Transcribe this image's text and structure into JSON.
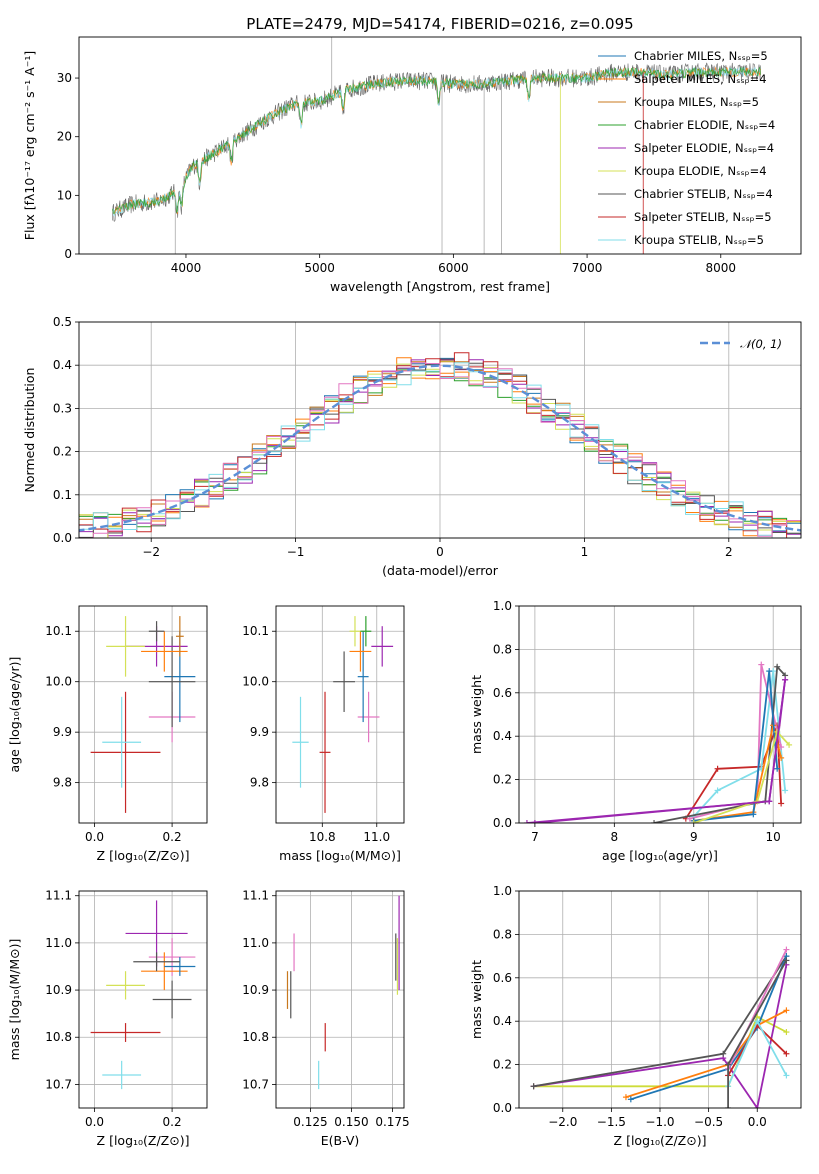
{
  "figure": {
    "title": "PLATE=2479, MJD=54174, FIBERID=0216, z=0.095"
  },
  "colors": {
    "Chabrier MILES": "#1f77b4",
    "Salpeter MILES": "#ff7f0e",
    "Kroupa MILES": "#c8781e",
    "Chabrier ELODIE": "#2ca02c",
    "Salpeter ELODIE": "#9c27b0",
    "Kroupa ELODIE": "#d4e157",
    "Chabrier STELIB": "#555555",
    "Salpeter STELIB": "#c62828",
    "Kroupa STELIB": "#80deea",
    "extra_pink": "#e377c2",
    "extra_lime": "#cddc39",
    "gaussian": "#5b8fd6"
  },
  "chart_data": [
    {
      "id": "spectrum",
      "type": "line",
      "xlabel": "wavelength [Angstrom, rest frame]",
      "ylabel": "Flux [fλ10⁻¹⁷ erg cm⁻² s⁻¹ A⁻¹]",
      "xlim": [
        3200,
        8600
      ],
      "ylim": [
        0,
        37
      ],
      "xticks": [
        "4000",
        "5000",
        "6000",
        "7000",
        "8000"
      ],
      "yticks": [
        "0",
        "10",
        "20",
        "30"
      ],
      "grid": false,
      "legend_placement": "right",
      "legend": [
        "Chabrier MILES, N_SSP=5",
        "Salpeter MILES, N_SSP=4",
        "Kroupa MILES, N_SSP=5",
        "Chabrier ELODIE, N_SSP=4",
        "Salpeter ELODIE, N_SSP=4",
        "Kroupa ELODIE, N_SSP=4",
        "Chabrier STELIB, N_SSP=4",
        "Salpeter STELIB, N_SSP=5",
        "Kroupa STELIB, N_SSP=5"
      ],
      "continuum": [
        [
          3450,
          7
        ],
        [
          3600,
          8.5
        ],
        [
          3800,
          9
        ],
        [
          3950,
          11
        ],
        [
          4050,
          15
        ],
        [
          4200,
          17
        ],
        [
          4400,
          20
        ],
        [
          4600,
          23
        ],
        [
          4800,
          25.5
        ],
        [
          5000,
          26
        ],
        [
          5200,
          28
        ],
        [
          5400,
          29
        ],
        [
          5600,
          29.5
        ],
        [
          5800,
          29.5
        ],
        [
          6000,
          29
        ],
        [
          6200,
          29
        ],
        [
          6400,
          29.5
        ],
        [
          6600,
          30
        ],
        [
          6800,
          30
        ],
        [
          7000,
          30
        ],
        [
          7200,
          31
        ],
        [
          7400,
          31
        ],
        [
          7600,
          30.5
        ],
        [
          7800,
          31
        ],
        [
          8000,
          31
        ],
        [
          8200,
          31
        ],
        [
          8300,
          31
        ]
      ]
    },
    {
      "id": "residuals",
      "type": "bar",
      "xlabel": "(data-model)/error",
      "ylabel": "Normed distribution",
      "xlim": [
        -2.5,
        2.5
      ],
      "ylim": [
        0,
        0.5
      ],
      "xticks": [
        "−2",
        "−1",
        "0",
        "1",
        "2"
      ],
      "yticks": [
        "0.0",
        "0.1",
        "0.2",
        "0.3",
        "0.4",
        "0.5"
      ],
      "grid": true,
      "legend_placement": "top-right",
      "legend": [
        "𝒩(0, 1)"
      ],
      "bin_width": 0.1
    },
    {
      "id": "age_vs_Z",
      "type": "scatter",
      "xlabel": "Z [log₁₀(Z/Z⊙)]",
      "ylabel": "age  [log₁₀(age/yr)]",
      "xlim": [
        -0.04,
        0.29
      ],
      "ylim": [
        9.72,
        10.15
      ],
      "xticks": [
        "0.0",
        "0.2"
      ],
      "yticks": [
        "9.8",
        "9.9",
        "10.0",
        "10.1"
      ],
      "grid": true,
      "points": [
        {
          "x": 0.08,
          "y": 9.86,
          "xerr": 0.09,
          "yerr": 0.12,
          "c": "Salpeter STELIB"
        },
        {
          "x": 0.07,
          "y": 9.88,
          "xerr": 0.05,
          "yerr": 0.09,
          "c": "Kroupa STELIB"
        },
        {
          "x": 0.2,
          "y": 9.93,
          "xerr": 0.06,
          "yerr": 0.05,
          "c": "extra_pink"
        },
        {
          "x": 0.22,
          "y": 10.01,
          "xerr": 0.04,
          "yerr": 0.09,
          "c": "Chabrier MILES"
        },
        {
          "x": 0.2,
          "y": 10.0,
          "xerr": 0.06,
          "yerr": 0.09,
          "c": "Chabrier STELIB"
        },
        {
          "x": 0.16,
          "y": 10.07,
          "xerr": 0.08,
          "yerr": 0.04,
          "c": "Salpeter ELODIE"
        },
        {
          "x": 0.18,
          "y": 10.06,
          "xerr": 0.06,
          "yerr": 0.04,
          "c": "Salpeter MILES"
        },
        {
          "x": 0.08,
          "y": 10.07,
          "xerr": 0.05,
          "yerr": 0.06,
          "c": "Kroupa ELODIE"
        },
        {
          "x": 0.16,
          "y": 10.1,
          "xerr": 0.02,
          "yerr": 0.02,
          "c": "Chabrier STELIB"
        },
        {
          "x": 0.22,
          "y": 10.09,
          "xerr": 0.01,
          "yerr": 0.04,
          "c": "Kroupa MILES"
        }
      ]
    },
    {
      "id": "age_vs_mass",
      "type": "scatter",
      "xlabel": "mass [log₁₀(M/M⊙)]",
      "ylabel": "",
      "xlim": [
        10.63,
        11.1
      ],
      "ylim": [
        9.72,
        10.15
      ],
      "xticks": [
        "10.8",
        "11.0"
      ],
      "yticks": [
        "9.8",
        "9.9",
        "10.0",
        "10.1"
      ],
      "grid": true,
      "points": [
        {
          "x": 10.81,
          "y": 9.86,
          "xerr": 0.02,
          "yerr": 0.12,
          "c": "Salpeter STELIB"
        },
        {
          "x": 10.72,
          "y": 9.88,
          "xerr": 0.03,
          "yerr": 0.09,
          "c": "Kroupa STELIB"
        },
        {
          "x": 10.97,
          "y": 9.93,
          "xerr": 0.04,
          "yerr": 0.05,
          "c": "extra_pink"
        },
        {
          "x": 10.95,
          "y": 10.01,
          "xerr": 0.02,
          "yerr": 0.09,
          "c": "Chabrier MILES"
        },
        {
          "x": 10.88,
          "y": 10.0,
          "xerr": 0.04,
          "yerr": 0.06,
          "c": "Chabrier STELIB"
        },
        {
          "x": 11.02,
          "y": 10.07,
          "xerr": 0.04,
          "yerr": 0.04,
          "c": "Salpeter ELODIE"
        },
        {
          "x": 10.94,
          "y": 10.06,
          "xerr": 0.04,
          "yerr": 0.04,
          "c": "Salpeter MILES"
        },
        {
          "x": 10.92,
          "y": 10.1,
          "xerr": 0.02,
          "yerr": 0.03,
          "c": "Kroupa ELODIE"
        },
        {
          "x": 10.96,
          "y": 10.1,
          "xerr": 0.02,
          "yerr": 0.03,
          "c": "Chabrier ELODIE"
        }
      ]
    },
    {
      "id": "massweight_vs_age",
      "type": "line",
      "xlabel": "age  [log₁₀(age/yr)]",
      "ylabel": "mass weight",
      "xlim": [
        6.8,
        10.35
      ],
      "ylim": [
        0,
        1.0
      ],
      "xticks": [
        "7",
        "8",
        "9",
        "10"
      ],
      "yticks": [
        "0.0",
        "0.2",
        "0.4",
        "0.6",
        "0.8",
        "1.0"
      ],
      "grid": true,
      "series": [
        {
          "c": "Salpeter ELODIE",
          "x": [
            6.9,
            9.95,
            10.15,
            10.05
          ],
          "y": [
            0.0,
            0.1,
            0.66,
            0.36
          ]
        },
        {
          "c": "Salpeter STELIB",
          "x": [
            8.9,
            9.3,
            9.85,
            10.05,
            10.1
          ],
          "y": [
            0.02,
            0.25,
            0.26,
            0.45,
            0.09
          ]
        },
        {
          "c": "Kroupa STELIB",
          "x": [
            9.0,
            9.3,
            9.85,
            10.0,
            10.15
          ],
          "y": [
            0.03,
            0.15,
            0.25,
            0.7,
            0.15
          ]
        },
        {
          "c": "extra_pink",
          "x": [
            8.95,
            9.8,
            9.85,
            10.1
          ],
          "y": [
            0.02,
            0.1,
            0.73,
            0.35
          ]
        },
        {
          "c": "Chabrier STELIB",
          "x": [
            8.5,
            9.9,
            10.05,
            10.15
          ],
          "y": [
            0.0,
            0.1,
            0.72,
            0.68
          ]
        },
        {
          "c": "Salpeter MILES",
          "x": [
            9.0,
            9.75,
            10.0,
            10.1
          ],
          "y": [
            0.01,
            0.05,
            0.45,
            0.3
          ]
        },
        {
          "c": "Chabrier MILES",
          "x": [
            9.0,
            9.75,
            9.95,
            10.05
          ],
          "y": [
            0.01,
            0.04,
            0.7,
            0.25
          ]
        },
        {
          "c": "Kroupa ELODIE",
          "x": [
            9.0,
            9.8,
            10.05,
            10.2
          ],
          "y": [
            0.0,
            0.1,
            0.42,
            0.36
          ]
        },
        {
          "c": "Salpeter ELODIE",
          "x": [
            7.0,
            9.95,
            10.15
          ],
          "y": [
            0.0,
            0.1,
            0.66
          ]
        }
      ]
    },
    {
      "id": "mass_vs_Z",
      "type": "scatter",
      "xlabel": "Z [log₁₀(Z/Z⊙)]",
      "ylabel": "mass [log₁₀(M/M⊙)]",
      "xlim": [
        -0.04,
        0.29
      ],
      "ylim": [
        10.65,
        11.11
      ],
      "xticks": [
        "0.0",
        "0.2"
      ],
      "yticks": [
        "10.7",
        "10.8",
        "10.9",
        "11.0",
        "11.1"
      ],
      "grid": true,
      "points": [
        {
          "x": 0.08,
          "y": 10.81,
          "xerr": 0.09,
          "yerr": 0.02,
          "c": "Salpeter STELIB"
        },
        {
          "x": 0.07,
          "y": 10.72,
          "xerr": 0.05,
          "yerr": 0.03,
          "c": "Kroupa STELIB"
        },
        {
          "x": 0.08,
          "y": 10.91,
          "xerr": 0.05,
          "yerr": 0.03,
          "c": "Kroupa ELODIE"
        },
        {
          "x": 0.2,
          "y": 10.88,
          "xerr": 0.05,
          "yerr": 0.04,
          "c": "Chabrier STELIB"
        },
        {
          "x": 0.16,
          "y": 11.02,
          "xerr": 0.08,
          "yerr": 0.07,
          "c": "Salpeter ELODIE"
        },
        {
          "x": 0.2,
          "y": 10.97,
          "xerr": 0.06,
          "yerr": 0.04,
          "c": "extra_pink"
        },
        {
          "x": 0.18,
          "y": 10.94,
          "xerr": 0.06,
          "yerr": 0.04,
          "c": "Salpeter MILES"
        },
        {
          "x": 0.22,
          "y": 10.95,
          "xerr": 0.04,
          "yerr": 0.02,
          "c": "Chabrier MILES"
        },
        {
          "x": 0.16,
          "y": 10.96,
          "xerr": 0.06,
          "yerr": 0.02,
          "c": "Chabrier STELIB"
        }
      ]
    },
    {
      "id": "mass_vs_EBV",
      "type": "scatter",
      "xlabel": "E(B-V)",
      "ylabel": "",
      "xlim": [
        0.104,
        0.182
      ],
      "ylim": [
        10.65,
        11.11
      ],
      "xticks": [
        "0.125",
        "0.150",
        "0.175"
      ],
      "yticks": [
        "10.7",
        "10.8",
        "10.9",
        "11.0",
        "11.1"
      ],
      "grid": true,
      "points": [
        {
          "x": 0.111,
          "y": 10.9,
          "yerr": 0.04,
          "c": "Kroupa MILES"
        },
        {
          "x": 0.113,
          "y": 10.89,
          "yerr": 0.05,
          "c": "Chabrier STELIB"
        },
        {
          "x": 0.115,
          "y": 10.98,
          "yerr": 0.04,
          "c": "extra_pink"
        },
        {
          "x": 0.13,
          "y": 10.72,
          "yerr": 0.03,
          "c": "Kroupa STELIB"
        },
        {
          "x": 0.134,
          "y": 10.8,
          "yerr": 0.03,
          "c": "Salpeter STELIB"
        },
        {
          "x": 0.177,
          "y": 10.97,
          "yerr": 0.05,
          "c": "Chabrier STELIB"
        },
        {
          "x": 0.179,
          "y": 11.0,
          "yerr": 0.1,
          "c": "Salpeter ELODIE"
        },
        {
          "x": 0.178,
          "y": 10.95,
          "yerr": 0.06,
          "c": "Kroupa ELODIE"
        }
      ]
    },
    {
      "id": "massweight_vs_Z",
      "type": "line",
      "xlabel": "Z [log₁₀(Z/Z⊙)]",
      "ylabel": "mass weight",
      "xlim": [
        -2.45,
        0.45
      ],
      "ylim": [
        0,
        1.0
      ],
      "xticks": [
        "−2.0",
        "−1.5",
        "−1.0",
        "−0.5",
        "0.0"
      ],
      "yticks": [
        "0.0",
        "0.2",
        "0.4",
        "0.6",
        "0.8",
        "1.0"
      ],
      "grid": true,
      "series": [
        {
          "c": "extra_lime",
          "x": [
            -2.3,
            -0.3,
            0.0,
            0.3
          ],
          "y": [
            0.1,
            0.1,
            0.42,
            0.35
          ]
        },
        {
          "c": "Salpeter ELODIE",
          "x": [
            -2.3,
            -0.35,
            0.0,
            0.3
          ],
          "y": [
            0.1,
            0.23,
            0.0,
            0.66
          ]
        },
        {
          "c": "Chabrier STELIB",
          "x": [
            -2.3,
            -0.35,
            0.3
          ],
          "y": [
            0.1,
            0.25,
            0.7
          ]
        },
        {
          "c": "Salpeter MILES",
          "x": [
            -1.35,
            -0.3,
            0.0,
            0.3
          ],
          "y": [
            0.05,
            0.2,
            0.38,
            0.45
          ]
        },
        {
          "c": "Chabrier MILES",
          "x": [
            -1.3,
            -0.3,
            0.0,
            0.3
          ],
          "y": [
            0.04,
            0.18,
            0.37,
            0.7
          ]
        },
        {
          "c": "extra_pink",
          "x": [
            -0.3,
            0.3
          ],
          "y": [
            0.18,
            0.73
          ]
        },
        {
          "c": "Salpeter STELIB",
          "x": [
            -0.3,
            0.0,
            0.3
          ],
          "y": [
            0.15,
            0.38,
            0.25
          ]
        },
        {
          "c": "Kroupa STELIB",
          "x": [
            -0.3,
            0.0,
            0.3
          ],
          "y": [
            0.1,
            0.4,
            0.15
          ]
        },
        {
          "c": "Chabrier STELIB",
          "x": [
            -0.3,
            -0.3,
            0.3
          ],
          "y": [
            0.0,
            0.2,
            0.68
          ]
        }
      ]
    }
  ]
}
